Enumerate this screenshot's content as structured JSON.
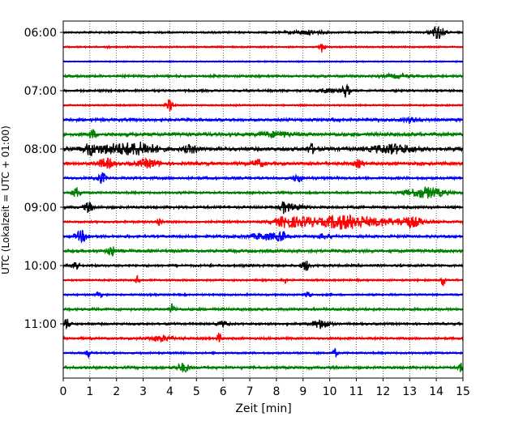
{
  "chart_data": {
    "type": "line",
    "xlabel": "Zeit  [min]",
    "ylabel": "UTC (Lokalzeit = UTC + 01:00)",
    "xlim": [
      0,
      15
    ],
    "x_ticks": [
      "0",
      "1",
      "2",
      "3",
      "4",
      "5",
      "6",
      "7",
      "8",
      "9",
      "10",
      "11",
      "12",
      "13",
      "14",
      "15"
    ],
    "y_tick_labels": [
      "06:00",
      "07:00",
      "08:00",
      "09:00",
      "10:00",
      "11:00"
    ],
    "grid": "vertical dotted",
    "trace_start_minutes": [
      360,
      375,
      390,
      405,
      420,
      435,
      450,
      465,
      480,
      495,
      510,
      525,
      540,
      555,
      570,
      585,
      600,
      615,
      630,
      645,
      660,
      675,
      690,
      705
    ],
    "trace_colors": [
      "#000000",
      "#ff0000",
      "#0000ff",
      "#008000"
    ],
    "series": [
      {
        "label": "06:00",
        "noise": 0.12,
        "events": [
          {
            "t": 9.2,
            "a": 0.25,
            "d": 0.6
          },
          {
            "t": 14.05,
            "a": 0.9,
            "d": 0.25
          }
        ]
      },
      {
        "noise": 0.1,
        "events": [
          {
            "t": 1.7,
            "a": 0.35,
            "d": 0.05
          },
          {
            "t": 9.7,
            "a": 0.8,
            "d": 0.1
          }
        ]
      },
      {
        "noise": 0.08,
        "events": []
      },
      {
        "noise": 0.15,
        "events": [
          {
            "t": 12.5,
            "a": 0.2,
            "d": 0.5
          }
        ]
      },
      {
        "label": "07:00",
        "noise": 0.14,
        "events": [
          {
            "t": 10.6,
            "a": 0.85,
            "d": 0.15
          },
          {
            "t": 9.9,
            "a": 0.25,
            "d": 0.3
          }
        ]
      },
      {
        "noise": 0.1,
        "events": [
          {
            "t": 4.0,
            "a": 0.85,
            "d": 0.12
          }
        ]
      },
      {
        "noise": 0.18,
        "events": [
          {
            "t": 13.0,
            "a": 0.25,
            "d": 0.3
          }
        ]
      },
      {
        "noise": 0.22,
        "events": [
          {
            "t": 1.1,
            "a": 0.55,
            "d": 0.12
          },
          {
            "t": 8.0,
            "a": 0.3,
            "d": 0.6
          }
        ]
      },
      {
        "label": "08:00",
        "noise": 0.22,
        "events": [
          {
            "t": 1.0,
            "a": 0.6,
            "d": 0.15
          },
          {
            "t": 2.0,
            "a": 0.6,
            "d": 1.1
          },
          {
            "t": 3.0,
            "a": 0.5,
            "d": 0.6
          },
          {
            "t": 4.8,
            "a": 0.45,
            "d": 0.3
          },
          {
            "t": 9.3,
            "a": 0.6,
            "d": 0.15
          },
          {
            "t": 12.4,
            "a": 0.55,
            "d": 0.8
          }
        ]
      },
      {
        "noise": 0.2,
        "events": [
          {
            "t": 1.6,
            "a": 0.6,
            "d": 0.3
          },
          {
            "t": 3.2,
            "a": 0.5,
            "d": 0.4
          },
          {
            "t": 7.3,
            "a": 0.5,
            "d": 0.2
          },
          {
            "t": 11.1,
            "a": 0.5,
            "d": 0.15
          }
        ]
      },
      {
        "noise": 0.16,
        "events": [
          {
            "t": 1.45,
            "a": 0.7,
            "d": 0.15
          },
          {
            "t": 8.8,
            "a": 0.6,
            "d": 0.15
          }
        ]
      },
      {
        "noise": 0.14,
        "events": [
          {
            "t": 0.5,
            "a": 0.7,
            "d": 0.15
          },
          {
            "t": 13.6,
            "a": 0.7,
            "d": 0.7
          }
        ]
      },
      {
        "label": "09:00",
        "noise": 0.16,
        "events": [
          {
            "t": 0.95,
            "a": 0.7,
            "d": 0.15
          },
          {
            "t": 8.3,
            "a": 0.7,
            "d": 0.15
          },
          {
            "t": 8.7,
            "a": 0.3,
            "d": 0.4
          }
        ]
      },
      {
        "noise": 0.14,
        "events": [
          {
            "t": 3.6,
            "a": 0.6,
            "d": 0.1
          },
          {
            "t": 8.4,
            "a": 0.75,
            "d": 0.5
          },
          {
            "t": 9.2,
            "a": 0.55,
            "d": 0.4
          },
          {
            "t": 10.2,
            "a": 0.75,
            "d": 0.5
          },
          {
            "t": 11.0,
            "a": 0.8,
            "d": 0.6
          },
          {
            "t": 12.0,
            "a": 0.45,
            "d": 0.4
          },
          {
            "t": 13.0,
            "a": 0.7,
            "d": 0.5
          }
        ]
      },
      {
        "noise": 0.16,
        "events": [
          {
            "t": 0.7,
            "a": 0.7,
            "d": 0.25
          },
          {
            "t": 7.6,
            "a": 0.4,
            "d": 0.6
          },
          {
            "t": 8.2,
            "a": 0.6,
            "d": 0.15
          },
          {
            "t": 9.8,
            "a": 0.3,
            "d": 0.3
          }
        ]
      },
      {
        "noise": 0.18,
        "events": [
          {
            "t": 1.8,
            "a": 0.65,
            "d": 0.15
          }
        ]
      },
      {
        "label": "10:00",
        "noise": 0.15,
        "events": [
          {
            "t": 0.45,
            "a": 0.75,
            "d": 0.12
          },
          {
            "t": 9.1,
            "a": 0.7,
            "d": 0.15
          }
        ]
      },
      {
        "noise": 0.12,
        "events": [
          {
            "t": 2.8,
            "a": 0.6,
            "d": 0.08
          },
          {
            "t": 8.3,
            "a": 0.45,
            "d": 0.1
          },
          {
            "t": 14.25,
            "a": 0.9,
            "d": 0.08
          }
        ]
      },
      {
        "noise": 0.12,
        "events": [
          {
            "t": 1.35,
            "a": 0.4,
            "d": 0.1
          },
          {
            "t": 9.2,
            "a": 0.5,
            "d": 0.1
          }
        ]
      },
      {
        "noise": 0.16,
        "events": [
          {
            "t": 4.1,
            "a": 0.65,
            "d": 0.12
          }
        ]
      },
      {
        "label": "11:00",
        "noise": 0.14,
        "events": [
          {
            "t": 0.15,
            "a": 0.7,
            "d": 0.12
          },
          {
            "t": 9.7,
            "a": 0.6,
            "d": 0.3
          },
          {
            "t": 6.0,
            "a": 0.3,
            "d": 0.2
          }
        ]
      },
      {
        "noise": 0.14,
        "events": [
          {
            "t": 3.7,
            "a": 0.35,
            "d": 0.5
          },
          {
            "t": 5.85,
            "a": 0.7,
            "d": 0.08
          }
        ]
      },
      {
        "noise": 0.12,
        "events": [
          {
            "t": 0.95,
            "a": 0.55,
            "d": 0.08
          },
          {
            "t": 10.2,
            "a": 0.6,
            "d": 0.08
          }
        ]
      },
      {
        "noise": 0.16,
        "events": [
          {
            "t": 4.5,
            "a": 0.55,
            "d": 0.25
          },
          {
            "t": 14.9,
            "a": 0.7,
            "d": 0.08
          }
        ]
      }
    ]
  }
}
